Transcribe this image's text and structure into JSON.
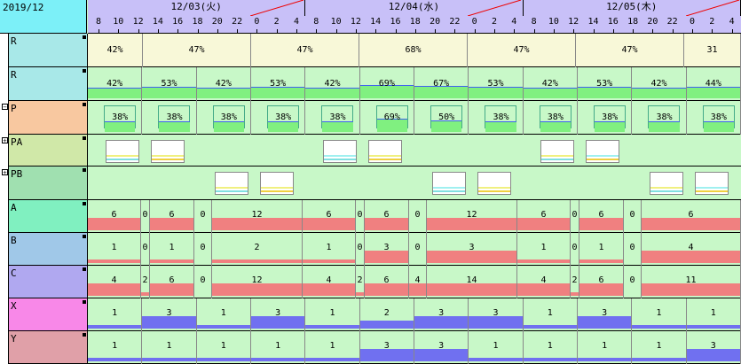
{
  "corner_label": "2019/12",
  "days": [
    {
      "label": "12/03(火)"
    },
    {
      "label": "12/04(水)"
    },
    {
      "label": "12/05(木)"
    }
  ],
  "hour_ticks": [
    "8",
    "10",
    "12",
    "14",
    "16",
    "18",
    "20",
    "22",
    "0",
    "2",
    "4"
  ],
  "rows": [
    {
      "label": "R",
      "color": "#a8e8e8",
      "type": "band",
      "values": [
        "42%",
        "47%",
        "47%",
        "68%",
        "47%",
        "47%",
        "31"
      ]
    },
    {
      "label": "R",
      "color": "#a8e8e8",
      "type": "bars",
      "values": [
        "42%",
        "53%",
        "42%",
        "53%",
        "42%",
        "69%",
        "67%",
        "53%",
        "42%",
        "53%",
        "42%",
        "44%"
      ]
    },
    {
      "label": "P",
      "color": "#f8c8a0",
      "type": "pbars",
      "values": [
        "38%",
        "38%",
        "38%",
        "38%",
        "38%",
        "69%",
        "50%",
        "38%",
        "38%",
        "38%",
        "38%",
        "38%"
      ]
    },
    {
      "label": "PA",
      "color": "#d0e8a8",
      "type": "chips"
    },
    {
      "label": "PB",
      "color": "#a0e0b0",
      "type": "chips"
    },
    {
      "label": "A",
      "color": "#80f0c0",
      "type": "counts",
      "values": [
        "6",
        "0",
        "6",
        "0",
        "12",
        "6",
        "0",
        "6",
        "0",
        "12",
        "6",
        "0",
        "6",
        "0",
        "6"
      ]
    },
    {
      "label": "B",
      "color": "#a0c8e8",
      "type": "counts",
      "values": [
        "1",
        "0",
        "1",
        "0",
        "2",
        "1",
        "0",
        "3",
        "0",
        "3",
        "1",
        "0",
        "1",
        "0",
        "4"
      ]
    },
    {
      "label": "C",
      "color": "#b0a8f0",
      "type": "counts",
      "values": [
        "4",
        "2",
        "6",
        "0",
        "12",
        "4",
        "2",
        "6",
        "4",
        "14",
        "4",
        "2",
        "6",
        "0",
        "11"
      ]
    },
    {
      "label": "X",
      "color": "#f888e8",
      "type": "blue",
      "values": [
        "1",
        "3",
        "1",
        "3",
        "1",
        "2",
        "3",
        "3",
        "1",
        "3",
        "1",
        "1"
      ]
    },
    {
      "label": "Y",
      "color": "#e0a0a8",
      "type": "blue",
      "values": [
        "1",
        "1",
        "1",
        "1",
        "1",
        "3",
        "3",
        "1",
        "1",
        "1",
        "1",
        "3"
      ]
    }
  ]
}
